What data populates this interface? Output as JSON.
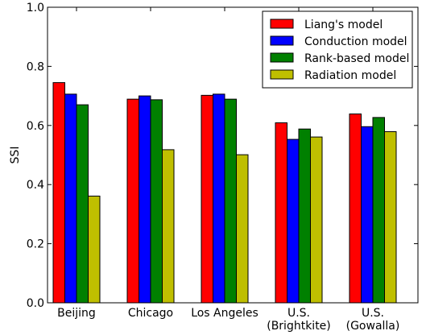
{
  "chart_data": {
    "type": "bar",
    "ylabel": "SSI",
    "xlabel": "",
    "title": "",
    "ylim": [
      0.0,
      1.0
    ],
    "yticks": [
      "0.0",
      "0.2",
      "0.4",
      "0.6",
      "0.8",
      "1.0"
    ],
    "categories": [
      [
        "Beijing"
      ],
      [
        "Chicago"
      ],
      [
        "Los Angeles"
      ],
      [
        "U.S.",
        "(Brightkite)"
      ],
      [
        "U.S.",
        "(Gowalla)"
      ]
    ],
    "series": [
      {
        "name": "Liang's model",
        "color": "#ff0000",
        "values": [
          0.745,
          0.689,
          0.702,
          0.609,
          0.639
        ]
      },
      {
        "name": "Conduction model",
        "color": "#0000ff",
        "values": [
          0.706,
          0.7,
          0.706,
          0.553,
          0.596
        ]
      },
      {
        "name": "Rank-based model",
        "color": "#008000",
        "values": [
          0.67,
          0.687,
          0.689,
          0.588,
          0.627
        ]
      },
      {
        "name": "Radiation model",
        "color": "#bfbf00",
        "values": [
          0.361,
          0.518,
          0.501,
          0.561,
          0.579
        ]
      }
    ],
    "grid": false,
    "legend_position": "top-right"
  }
}
